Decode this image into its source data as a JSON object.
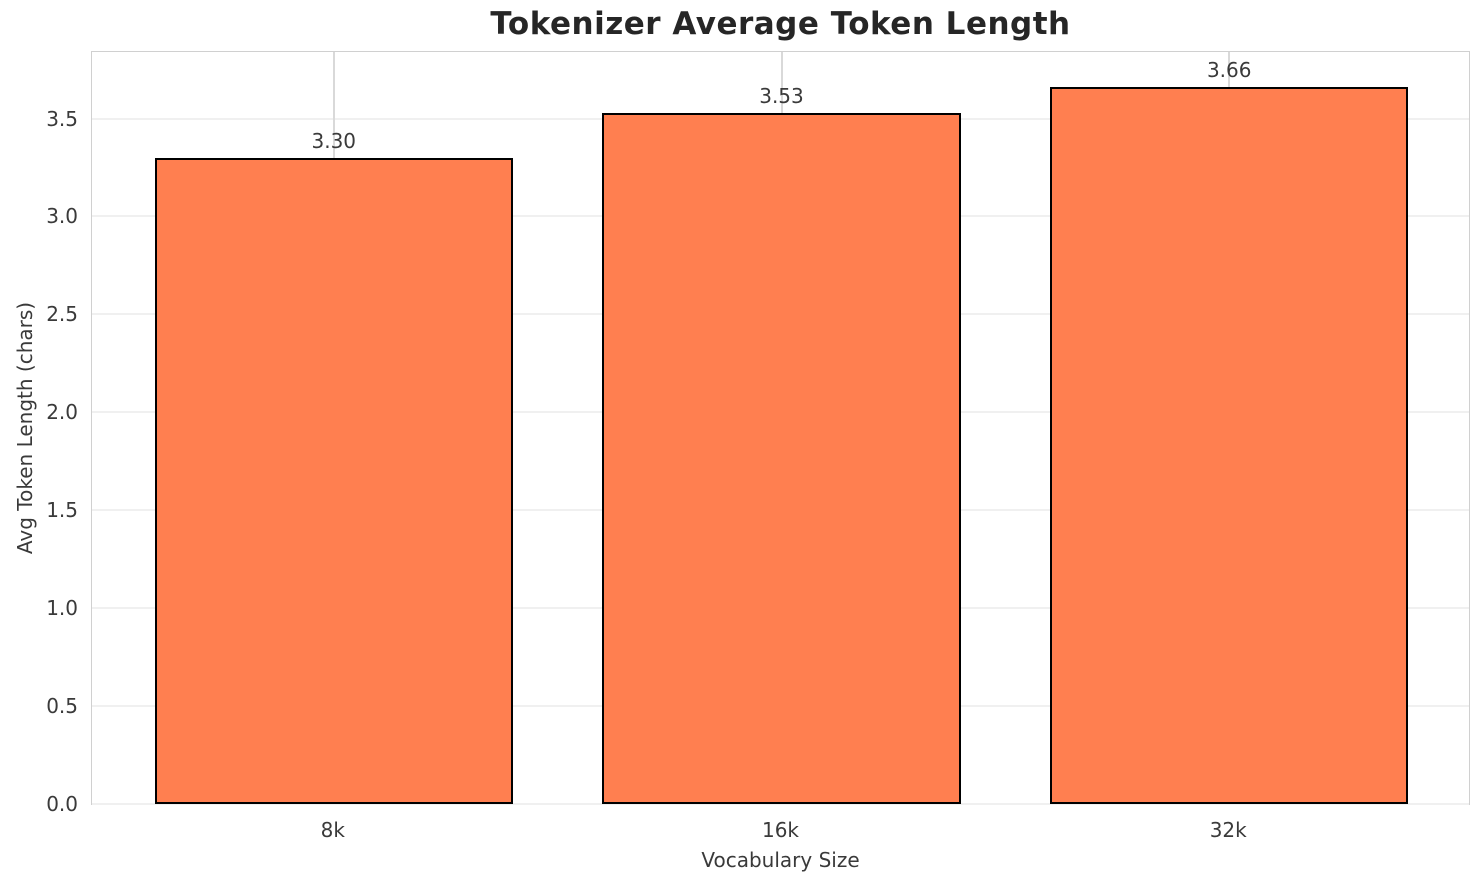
{
  "chart_data": {
    "type": "bar",
    "title": "Tokenizer Average Token Length",
    "xlabel": "Vocabulary Size",
    "ylabel": "Avg Token Length (chars)",
    "categories": [
      "8k",
      "16k",
      "32k"
    ],
    "values": [
      3.3,
      3.53,
      3.66
    ],
    "value_labels": [
      "3.30",
      "3.53",
      "3.66"
    ],
    "ylim": [
      0,
      3.85
    ],
    "yticks": [
      0.0,
      0.5,
      1.0,
      1.5,
      2.0,
      2.5,
      3.0,
      3.5
    ],
    "ytick_labels": [
      "0.0",
      "0.5",
      "1.0",
      "1.5",
      "2.0",
      "2.5",
      "3.0",
      "3.5"
    ],
    "grid": true,
    "legend": "none",
    "bar_width_fraction": 0.8,
    "colors": {
      "bar_fill": "#FF7F50",
      "bar_edge": "#000000",
      "grid_horizontal": "#f0f0f0",
      "grid_vertical": "#d9d9d9",
      "spine": "#d0d0d0",
      "title_text": "#262626",
      "tick_text": "#3a3a3a"
    }
  }
}
